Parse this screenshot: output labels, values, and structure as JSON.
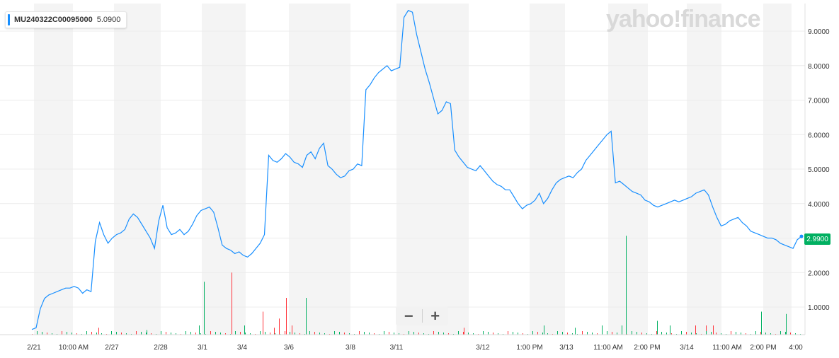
{
  "legend": {
    "symbol": "MU240322C00095000",
    "value": "5.0900",
    "color": "#188fff"
  },
  "watermark": "yahoo!finance",
  "last_price": {
    "label": "2.9900",
    "color": "#00b061"
  },
  "zoom": {
    "minus": "−",
    "plus": "+"
  },
  "chart_data": {
    "type": "line",
    "title": "",
    "xlabel": "",
    "ylabel": "",
    "ylim": [
      0.2,
      9.8
    ],
    "y_ticks": [
      "1.0000",
      "2.0000",
      "3.0000",
      "4.0000",
      "5.0000",
      "6.0000",
      "7.0000",
      "8.0000",
      "9.0000"
    ],
    "x_ticks": [
      "2/21",
      "10:00 AM",
      "2/27",
      "2/28",
      "3/1",
      "3/4",
      "3/6",
      "3/8",
      "3/11",
      "3/12",
      "1:00 PM",
      "3/13",
      "11:00 AM",
      "2:00 PM",
      "3/14",
      "11:00 AM",
      "2:00 PM",
      "4:00"
    ],
    "grid": true,
    "series": [
      {
        "color": "#188fff",
        "values": [
          0.35,
          0.4,
          0.95,
          1.25,
          1.35,
          1.4,
          1.45,
          1.5,
          1.55,
          1.55,
          1.6,
          1.55,
          1.4,
          1.5,
          1.45,
          2.9,
          3.45,
          3.1,
          2.85,
          3.0,
          3.1,
          3.15,
          3.25,
          3.55,
          3.7,
          3.6,
          3.4,
          3.2,
          3.0,
          2.7,
          3.5,
          3.95,
          3.3,
          3.1,
          3.15,
          3.25,
          3.1,
          3.2,
          3.4,
          3.65,
          3.8,
          3.85,
          3.9,
          3.75,
          3.3,
          2.8,
          2.7,
          2.65,
          2.55,
          2.6,
          2.5,
          2.45,
          2.55,
          2.7,
          2.85,
          3.1,
          5.4,
          5.25,
          5.2,
          5.3,
          5.45,
          5.35,
          5.2,
          5.15,
          5.05,
          5.4,
          5.5,
          5.3,
          5.6,
          5.75,
          5.1,
          5.0,
          4.85,
          4.75,
          4.8,
          4.95,
          5.0,
          5.15,
          5.1,
          7.3,
          7.45,
          7.65,
          7.8,
          7.9,
          8.0,
          7.85,
          7.9,
          7.95,
          9.4,
          9.6,
          9.55,
          8.9,
          8.4,
          7.9,
          7.5,
          7.05,
          6.6,
          6.7,
          6.95,
          6.9,
          5.55,
          5.35,
          5.2,
          5.05,
          5.0,
          4.95,
          5.1,
          4.95,
          4.8,
          4.65,
          4.55,
          4.5,
          4.4,
          4.4,
          4.2,
          4.0,
          3.85,
          3.95,
          4.0,
          4.1,
          4.3,
          4.0,
          4.15,
          4.4,
          4.6,
          4.7,
          4.75,
          4.8,
          4.75,
          4.9,
          5.0,
          5.25,
          5.4,
          5.55,
          5.7,
          5.85,
          6.0,
          6.1,
          4.6,
          4.65,
          4.55,
          4.45,
          4.35,
          4.3,
          4.25,
          4.1,
          4.05,
          3.95,
          3.9,
          3.95,
          4.0,
          4.05,
          4.1,
          4.05,
          4.1,
          4.15,
          4.2,
          4.3,
          4.35,
          4.4,
          4.25,
          3.9,
          3.6,
          3.35,
          3.4,
          3.5,
          3.55,
          3.6,
          3.45,
          3.35,
          3.2,
          3.15,
          3.1,
          3.05,
          3.0,
          3.0,
          2.95,
          2.85,
          2.8,
          2.75,
          2.7,
          2.95,
          3.05
        ]
      }
    ],
    "volume": {
      "color_up": "#00b061",
      "color_down": "#ff333a",
      "spikes": [
        {
          "x": 139,
          "v": 0.15,
          "up": false
        },
        {
          "x": 207,
          "v": 0.1,
          "up": true
        },
        {
          "x": 281,
          "v": 0.2,
          "up": true
        },
        {
          "x": 288,
          "v": 1.15,
          "up": true
        },
        {
          "x": 327,
          "v": 1.35,
          "up": false
        },
        {
          "x": 345,
          "v": 0.2,
          "up": true
        },
        {
          "x": 371,
          "v": 0.5,
          "up": false
        },
        {
          "x": 387,
          "v": 0.15,
          "up": false
        },
        {
          "x": 394,
          "v": 0.35,
          "up": false
        },
        {
          "x": 404,
          "v": 0.8,
          "up": false
        },
        {
          "x": 412,
          "v": 0.2,
          "up": false
        },
        {
          "x": 432,
          "v": 0.8,
          "up": true
        },
        {
          "x": 655,
          "v": 0.15,
          "up": false
        },
        {
          "x": 768,
          "v": 0.2,
          "up": true
        },
        {
          "x": 812,
          "v": 0.15,
          "up": true
        },
        {
          "x": 850,
          "v": 0.2,
          "up": true
        },
        {
          "x": 878,
          "v": 0.2,
          "up": true
        },
        {
          "x": 884,
          "v": 2.15,
          "up": true
        },
        {
          "x": 928,
          "v": 0.3,
          "up": true
        },
        {
          "x": 946,
          "v": 0.2,
          "up": true
        },
        {
          "x": 982,
          "v": 0.2,
          "up": false
        },
        {
          "x": 997,
          "v": 0.2,
          "up": false
        },
        {
          "x": 1007,
          "v": 0.2,
          "up": false
        },
        {
          "x": 1075,
          "v": 0.5,
          "up": true
        },
        {
          "x": 1110,
          "v": 0.45,
          "up": true
        }
      ]
    }
  }
}
